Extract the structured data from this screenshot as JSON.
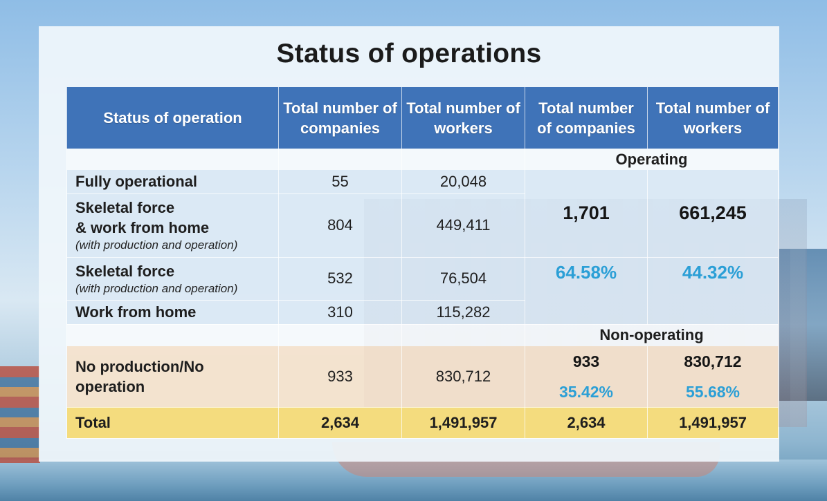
{
  "title": "Status of operations",
  "headers": {
    "status": "Status of operation",
    "companies_1": "Total number of companies",
    "workers_1": "Total number of workers",
    "companies_2": "Total number of companies",
    "workers_2": "Total number of workers"
  },
  "operating_label": "Operating",
  "non_operating_label": "Non-operating",
  "rows": [
    {
      "label": "Fully operational",
      "sub": "",
      "companies": "55",
      "workers": "20,048"
    },
    {
      "label_line1": "Skeletal force",
      "label_line2": "& work from home",
      "sub": "(with production and operation)",
      "companies": "804",
      "workers": "449,411"
    },
    {
      "label": "Skeletal force",
      "sub": "(with production and operation)",
      "companies": "532",
      "workers": "76,504"
    },
    {
      "label": "Work from home",
      "sub": "",
      "companies": "310",
      "workers": "115,282"
    }
  ],
  "operating_summary": {
    "companies": "1,701",
    "workers": "661,245",
    "companies_pct": "64.58%",
    "workers_pct": "44.32%"
  },
  "non_operating_row": {
    "label_line1": "No production/No",
    "label_line2": "operation",
    "companies": "933",
    "workers": "830,712"
  },
  "non_operating_summary": {
    "companies": "933",
    "workers": "830,712",
    "companies_pct": "35.42%",
    "workers_pct": "55.68%"
  },
  "total": {
    "label": "Total",
    "companies": "2,634",
    "workers": "1,491,957",
    "companies_2": "2,634",
    "workers_2": "1,491,957"
  },
  "colors": {
    "header_bg": "#3f73b8",
    "percent_text": "#2b9fd6",
    "total_row_bg": "#f4dc7e",
    "non_operating_bg": "#f4dfc8"
  }
}
